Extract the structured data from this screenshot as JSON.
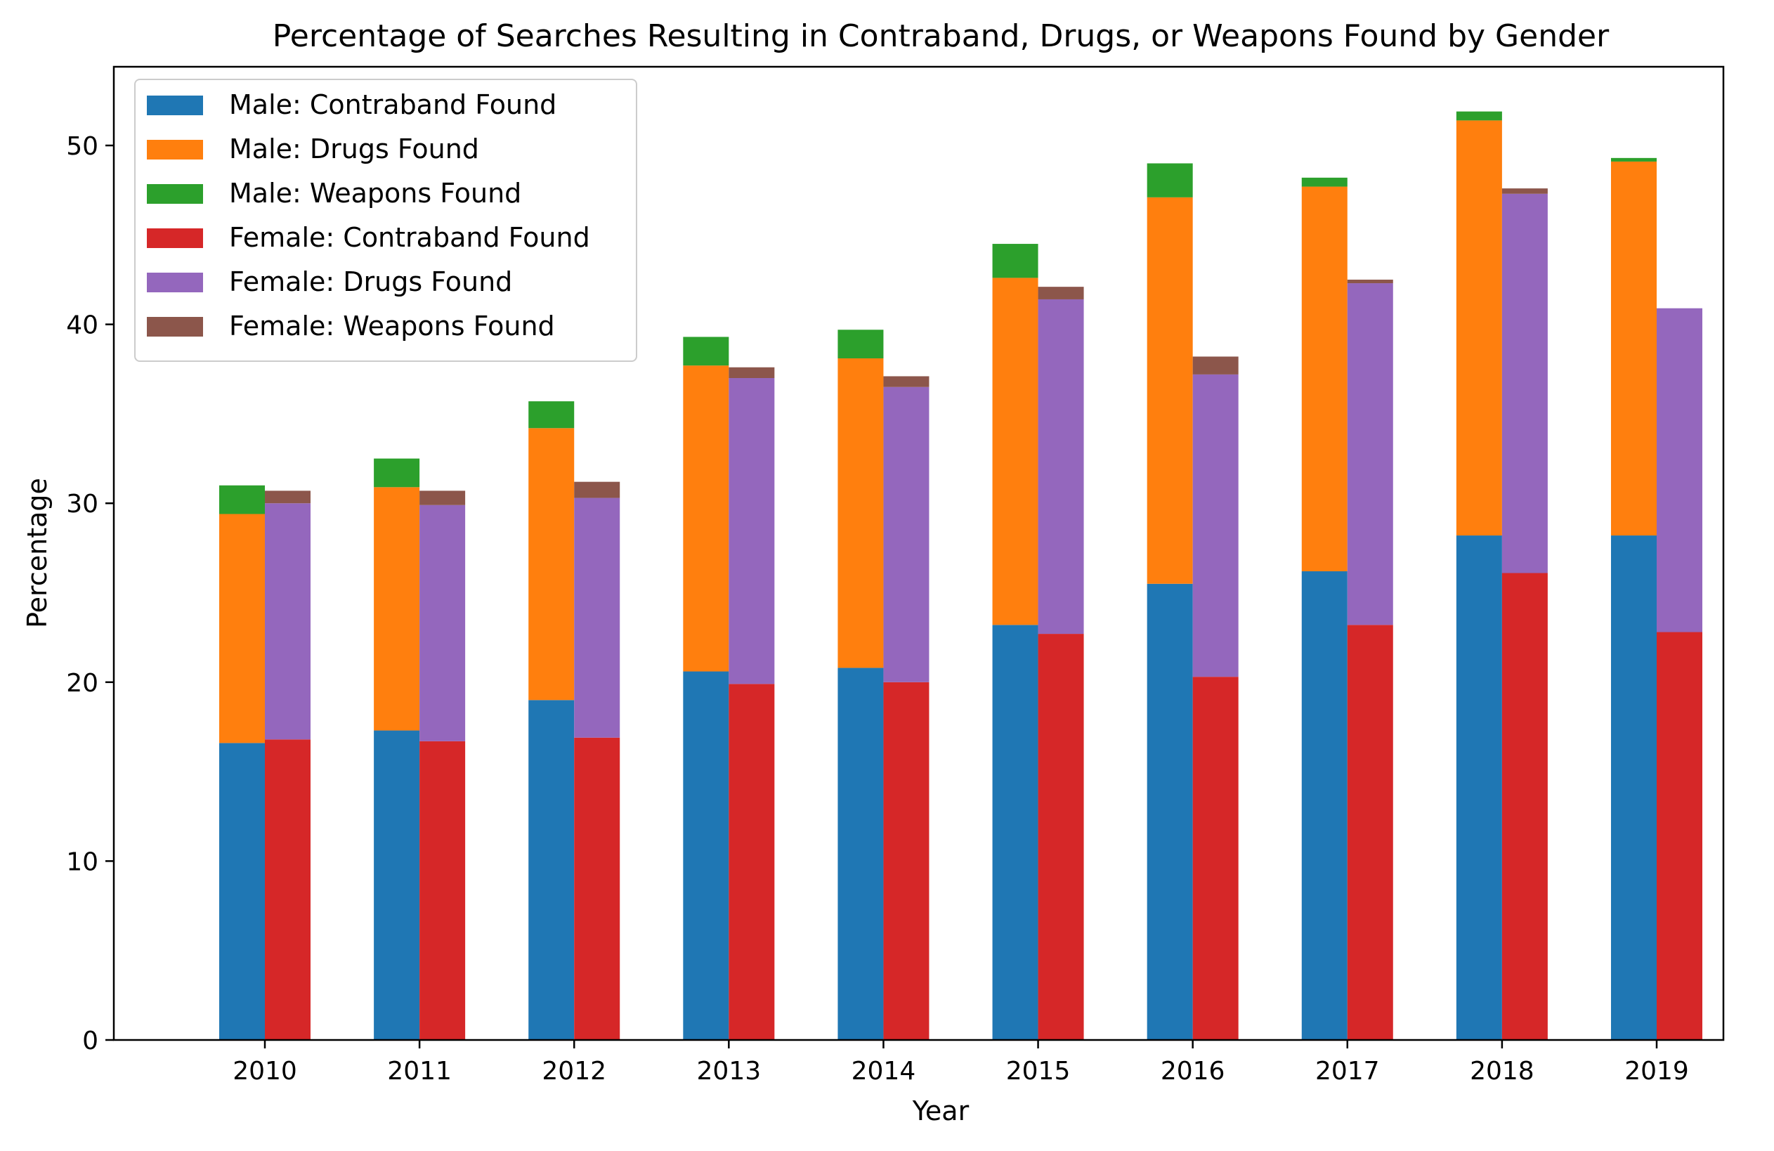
{
  "chart_data": {
    "type": "bar",
    "stacked": true,
    "grouped_by": "gender",
    "title": "Percentage of Searches Resulting in Contraband, Drugs, or Weapons Found by Gender",
    "xlabel": "Year",
    "ylabel": "Percentage",
    "ylim": [
      0,
      54.4
    ],
    "yticks": [
      0,
      10,
      20,
      30,
      40,
      50
    ],
    "grid": false,
    "legend_position": "top-left",
    "categories": [
      "2010",
      "2011",
      "2012",
      "2013",
      "2014",
      "2015",
      "2016",
      "2017",
      "2018",
      "2019"
    ],
    "series": [
      {
        "name": "Male: Contraband Found",
        "group": "male",
        "color": "#1f77b4",
        "values": [
          16.6,
          17.3,
          19.0,
          20.6,
          20.8,
          23.2,
          25.5,
          26.2,
          28.2,
          28.2
        ]
      },
      {
        "name": "Male: Drugs Found",
        "group": "male",
        "color": "#ff7f0e",
        "values": [
          12.8,
          13.6,
          15.2,
          17.1,
          17.3,
          19.4,
          21.6,
          21.5,
          23.2,
          20.9
        ]
      },
      {
        "name": "Male: Weapons Found",
        "group": "male",
        "color": "#2ca02c",
        "values": [
          1.6,
          1.6,
          1.5,
          1.6,
          1.6,
          1.9,
          1.9,
          0.5,
          0.5,
          0.2
        ]
      },
      {
        "name": "Female: Contraband Found",
        "group": "female",
        "color": "#d62728",
        "values": [
          16.8,
          16.7,
          16.9,
          19.9,
          20.0,
          22.7,
          20.3,
          23.2,
          26.1,
          22.8
        ]
      },
      {
        "name": "Female: Drugs Found",
        "group": "female",
        "color": "#9467bd",
        "values": [
          13.2,
          13.2,
          13.4,
          17.1,
          16.5,
          18.7,
          16.9,
          19.1,
          21.2,
          18.1
        ]
      },
      {
        "name": "Female: Weapons Found",
        "group": "female",
        "color": "#8c564b",
        "values": [
          0.7,
          0.8,
          0.9,
          0.6,
          0.6,
          0.7,
          1.0,
          0.2,
          0.3,
          0.0
        ]
      }
    ]
  }
}
